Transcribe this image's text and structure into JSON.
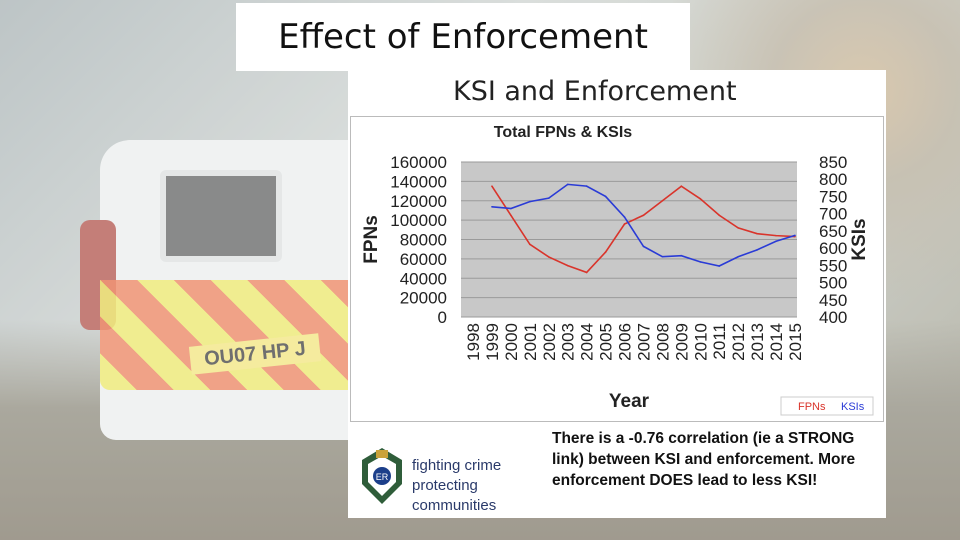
{
  "slide": {
    "title": "Effect of Enforcement",
    "plate_text": "OU07 HP J"
  },
  "card": {
    "heading": "KSI and Enforcement",
    "note": "There is a -0.76 correlation (ie a STRONG  link) between KSI and enforcement. More enforcement DOES lead to less KSI!",
    "logo_line1": "fighting crime",
    "logo_line2": "protecting communities",
    "crest_letters": "ER"
  },
  "colors": {
    "fpn": "#d9342b",
    "ksi": "#2a3bd6",
    "plot_bg": "#c8c8c8"
  },
  "chart_data": {
    "type": "line",
    "title": "Total FPNs & KSIs",
    "xlabel": "Year",
    "ylabel": "FPNs",
    "y2label": "KSIs",
    "x": [
      "1998",
      "1999",
      "2000",
      "2001",
      "2002",
      "2003",
      "2004",
      "2005",
      "2006",
      "2007",
      "2008",
      "2009",
      "2010",
      "2011",
      "2012",
      "2013",
      "2014",
      "2015"
    ],
    "ylim": [
      0,
      160000
    ],
    "y2lim": [
      400,
      850
    ],
    "yticks": [
      0,
      20000,
      40000,
      60000,
      80000,
      100000,
      120000,
      140000,
      160000
    ],
    "y2ticks": [
      400,
      450,
      500,
      550,
      600,
      650,
      700,
      750,
      800,
      850
    ],
    "grid": true,
    "legend_position": "bottom-right",
    "series": [
      {
        "name": "FPNs",
        "axis": "left",
        "values": [
          null,
          135000,
          105000,
          75000,
          62000,
          53000,
          46000,
          67000,
          96000,
          105000,
          120000,
          135000,
          122000,
          105000,
          92000,
          86000,
          84000,
          83000
        ]
      },
      {
        "name": "KSIs",
        "axis": "right",
        "values": [
          null,
          720,
          715,
          735,
          745,
          785,
          780,
          750,
          690,
          605,
          575,
          578,
          560,
          548,
          575,
          595,
          620,
          637
        ]
      }
    ]
  }
}
